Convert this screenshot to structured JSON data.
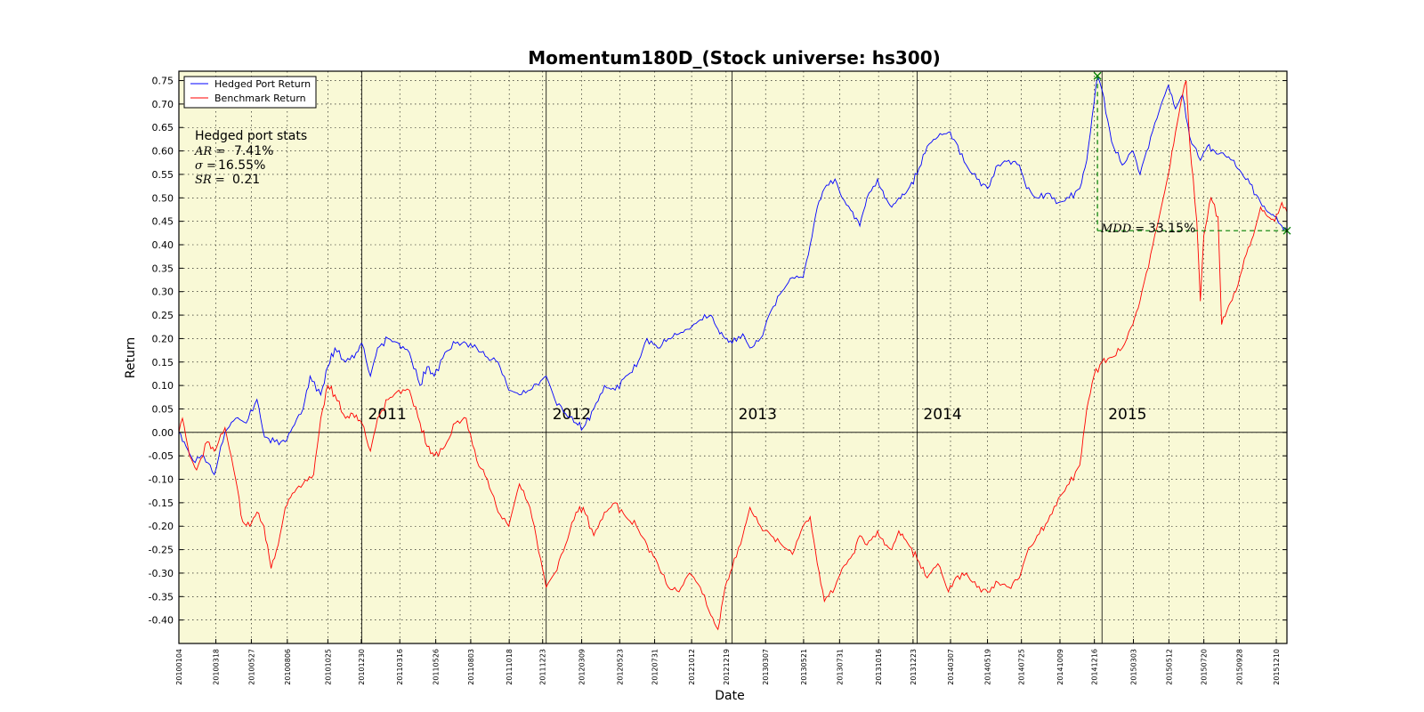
{
  "chart_data": {
    "type": "line",
    "title": "Momentum180D_(Stock universe: hs300)",
    "xlabel": "Date",
    "ylabel": "Return",
    "xrange": [
      "20100104",
      "20151231"
    ],
    "ylim": [
      -0.45,
      0.77
    ],
    "yticks": [
      -0.4,
      -0.35,
      -0.3,
      -0.25,
      -0.2,
      -0.15,
      -0.1,
      -0.05,
      0.0,
      0.05,
      0.1,
      0.15,
      0.2,
      0.25,
      0.3,
      0.35,
      0.4,
      0.45,
      0.5,
      0.55,
      0.6,
      0.65,
      0.7,
      0.75
    ],
    "xtick_labels": [
      "20100104",
      "20100318",
      "20100527",
      "20100806",
      "20101025",
      "20101230",
      "20110316",
      "20110526",
      "20110803",
      "20111018",
      "20111223",
      "20120309",
      "20120523",
      "20120731",
      "20121012",
      "20121219",
      "20130307",
      "20130521",
      "20130731",
      "20131016",
      "20131223",
      "20140307",
      "20140519",
      "20140725",
      "20141009",
      "20141216",
      "20150303",
      "20150512",
      "20150720",
      "20150928",
      "20151210"
    ],
    "grid": true,
    "legend_position": "top-left",
    "background_color": "#f9f9d6",
    "year_markers": [
      {
        "date": "20101231",
        "label": "2011"
      },
      {
        "date": "20111230",
        "label": "2012"
      },
      {
        "date": "20121231",
        "label": "2013"
      },
      {
        "date": "20131231",
        "label": "2014"
      },
      {
        "date": "20141231",
        "label": "2015"
      }
    ],
    "series": [
      {
        "name": "Hedged Port Return",
        "color": "#0000ff",
        "points": [
          [
            "20100104",
            0.0
          ],
          [
            "20100118",
            -0.03
          ],
          [
            "20100201",
            -0.06
          ],
          [
            "20100222",
            -0.05
          ],
          [
            "20100315",
            -0.09
          ],
          [
            "20100405",
            0.0
          ],
          [
            "20100426",
            0.03
          ],
          [
            "20100517",
            0.02
          ],
          [
            "20100607",
            0.07
          ],
          [
            "20100622",
            -0.01
          ],
          [
            "20100712",
            -0.02
          ],
          [
            "20100802",
            -0.02
          ],
          [
            "20100816",
            0.01
          ],
          [
            "20100906",
            0.05
          ],
          [
            "20100920",
            0.12
          ],
          [
            "20101011",
            0.08
          ],
          [
            "20101025",
            0.14
          ],
          [
            "20101108",
            0.18
          ],
          [
            "20101129",
            0.15
          ],
          [
            "20101220",
            0.17
          ],
          [
            "20101231",
            0.19
          ],
          [
            "20110117",
            0.12
          ],
          [
            "20110131",
            0.18
          ],
          [
            "20110221",
            0.2
          ],
          [
            "20110314",
            0.19
          ],
          [
            "20110404",
            0.17
          ],
          [
            "20110425",
            0.1
          ],
          [
            "20110509",
            0.14
          ],
          [
            "20110523",
            0.12
          ],
          [
            "20110613",
            0.17
          ],
          [
            "20110704",
            0.19
          ],
          [
            "20110725",
            0.19
          ],
          [
            "20110815",
            0.18
          ],
          [
            "20110905",
            0.16
          ],
          [
            "20110926",
            0.15
          ],
          [
            "20111017",
            0.09
          ],
          [
            "20111107",
            0.08
          ],
          [
            "20111128",
            0.09
          ],
          [
            "20111219",
            0.11
          ],
          [
            "20111230",
            0.12
          ],
          [
            "20120116",
            0.07
          ],
          [
            "20120206",
            0.04
          ],
          [
            "20120227",
            0.02
          ],
          [
            "20120312",
            0.01
          ],
          [
            "20120402",
            0.05
          ],
          [
            "20120423",
            0.1
          ],
          [
            "20120514",
            0.09
          ],
          [
            "20120604",
            0.12
          ],
          [
            "20120625",
            0.14
          ],
          [
            "20120716",
            0.2
          ],
          [
            "20120806",
            0.18
          ],
          [
            "20120827",
            0.2
          ],
          [
            "20120917",
            0.21
          ],
          [
            "20121008",
            0.22
          ],
          [
            "20121029",
            0.24
          ],
          [
            "20121119",
            0.25
          ],
          [
            "20121203",
            0.22
          ],
          [
            "20121217",
            0.2
          ],
          [
            "20121231",
            0.19
          ],
          [
            "20130121",
            0.21
          ],
          [
            "20130204",
            0.18
          ],
          [
            "20130225",
            0.2
          ],
          [
            "20130318",
            0.26
          ],
          [
            "20130408",
            0.3
          ],
          [
            "20130429",
            0.33
          ],
          [
            "20130520",
            0.33
          ],
          [
            "20130603",
            0.4
          ],
          [
            "20130617",
            0.48
          ],
          [
            "20130701",
            0.52
          ],
          [
            "20130722",
            0.54
          ],
          [
            "20130805",
            0.5
          ],
          [
            "20130826",
            0.47
          ],
          [
            "20130909",
            0.44
          ],
          [
            "20130923",
            0.5
          ],
          [
            "20131014",
            0.54
          ],
          [
            "20131028",
            0.5
          ],
          [
            "20131111",
            0.48
          ],
          [
            "20131125",
            0.5
          ],
          [
            "20131209",
            0.51
          ],
          [
            "20131231",
            0.55
          ],
          [
            "20140120",
            0.61
          ],
          [
            "20140210",
            0.63
          ],
          [
            "20140303",
            0.64
          ],
          [
            "20140317",
            0.62
          ],
          [
            "20140407",
            0.57
          ],
          [
            "20140428",
            0.54
          ],
          [
            "20140519",
            0.52
          ],
          [
            "20140609",
            0.57
          ],
          [
            "20140630",
            0.58
          ],
          [
            "20140721",
            0.57
          ],
          [
            "20140804",
            0.52
          ],
          [
            "20140825",
            0.5
          ],
          [
            "20140915",
            0.51
          ],
          [
            "20141006",
            0.49
          ],
          [
            "20141027",
            0.5
          ],
          [
            "20141117",
            0.52
          ],
          [
            "20141201",
            0.58
          ],
          [
            "20141215",
            0.7
          ],
          [
            "20141222",
            0.76
          ],
          [
            "20141231",
            0.73
          ],
          [
            "20150119",
            0.62
          ],
          [
            "20150209",
            0.57
          ],
          [
            "20150302",
            0.6
          ],
          [
            "20150316",
            0.55
          ],
          [
            "20150406",
            0.63
          ],
          [
            "20150427",
            0.7
          ],
          [
            "20150511",
            0.74
          ],
          [
            "20150525",
            0.69
          ],
          [
            "20150608",
            0.72
          ],
          [
            "20150622",
            0.63
          ],
          [
            "20150713",
            0.58
          ],
          [
            "20150727",
            0.61
          ],
          [
            "20150810",
            0.6
          ],
          [
            "20150831",
            0.59
          ],
          [
            "20150914",
            0.58
          ],
          [
            "20150928",
            0.56
          ],
          [
            "20151019",
            0.53
          ],
          [
            "20151109",
            0.49
          ],
          [
            "20151123",
            0.47
          ],
          [
            "20151207",
            0.46
          ],
          [
            "20151221",
            0.44
          ],
          [
            "20151231",
            0.43
          ]
        ]
      },
      {
        "name": "Benchmark Return",
        "color": "#ff0000",
        "points": [
          [
            "20100104",
            0.0
          ],
          [
            "20100111",
            0.03
          ],
          [
            "20100125",
            -0.05
          ],
          [
            "20100208",
            -0.08
          ],
          [
            "20100301",
            -0.02
          ],
          [
            "20100315",
            -0.04
          ],
          [
            "20100405",
            0.01
          ],
          [
            "20100426",
            -0.1
          ],
          [
            "20100510",
            -0.19
          ],
          [
            "20100524",
            -0.2
          ],
          [
            "20100607",
            -0.17
          ],
          [
            "20100621",
            -0.2
          ],
          [
            "20100705",
            -0.29
          ],
          [
            "20100719",
            -0.24
          ],
          [
            "20100802",
            -0.16
          ],
          [
            "20100816",
            -0.13
          ],
          [
            "20100906",
            -0.11
          ],
          [
            "20100927",
            -0.09
          ],
          [
            "20101011",
            0.03
          ],
          [
            "20101025",
            0.1
          ],
          [
            "20101108",
            0.08
          ],
          [
            "20101129",
            0.03
          ],
          [
            "20101213",
            0.04
          ],
          [
            "20101231",
            0.02
          ],
          [
            "20110117",
            -0.04
          ],
          [
            "20110131",
            0.03
          ],
          [
            "20110221",
            0.07
          ],
          [
            "20110314",
            0.09
          ],
          [
            "20110404",
            0.09
          ],
          [
            "20110425",
            0.02
          ],
          [
            "20110509",
            -0.03
          ],
          [
            "20110523",
            -0.05
          ],
          [
            "20110613",
            -0.03
          ],
          [
            "20110704",
            0.02
          ],
          [
            "20110725",
            0.03
          ],
          [
            "20110815",
            -0.06
          ],
          [
            "20110905",
            -0.1
          ],
          [
            "20110926",
            -0.17
          ],
          [
            "20111017",
            -0.2
          ],
          [
            "20111107",
            -0.11
          ],
          [
            "20111128",
            -0.16
          ],
          [
            "20111219",
            -0.27
          ],
          [
            "20111230",
            -0.33
          ],
          [
            "20120116",
            -0.3
          ],
          [
            "20120206",
            -0.24
          ],
          [
            "20120227",
            -0.17
          ],
          [
            "20120312",
            -0.16
          ],
          [
            "20120402",
            -0.22
          ],
          [
            "20120423",
            -0.17
          ],
          [
            "20120514",
            -0.15
          ],
          [
            "20120604",
            -0.18
          ],
          [
            "20120625",
            -0.2
          ],
          [
            "20120716",
            -0.24
          ],
          [
            "20120806",
            -0.28
          ],
          [
            "20120827",
            -0.33
          ],
          [
            "20120917",
            -0.34
          ],
          [
            "20121008",
            -0.3
          ],
          [
            "20121029",
            -0.33
          ],
          [
            "20121119",
            -0.39
          ],
          [
            "20121203",
            -0.42
          ],
          [
            "20121217",
            -0.33
          ],
          [
            "20121231",
            -0.29
          ],
          [
            "20130121",
            -0.22
          ],
          [
            "20130204",
            -0.16
          ],
          [
            "20130225",
            -0.2
          ],
          [
            "20130318",
            -0.22
          ],
          [
            "20130408",
            -0.24
          ],
          [
            "20130429",
            -0.26
          ],
          [
            "20130520",
            -0.2
          ],
          [
            "20130603",
            -0.18
          ],
          [
            "20130617",
            -0.28
          ],
          [
            "20130701",
            -0.36
          ],
          [
            "20130722",
            -0.33
          ],
          [
            "20130805",
            -0.29
          ],
          [
            "20130826",
            -0.26
          ],
          [
            "20130909",
            -0.22
          ],
          [
            "20130923",
            -0.24
          ],
          [
            "20131014",
            -0.21
          ],
          [
            "20131028",
            -0.24
          ],
          [
            "20131111",
            -0.25
          ],
          [
            "20131125",
            -0.21
          ],
          [
            "20131209",
            -0.23
          ],
          [
            "20131231",
            -0.27
          ],
          [
            "20140120",
            -0.31
          ],
          [
            "20140210",
            -0.28
          ],
          [
            "20140303",
            -0.34
          ],
          [
            "20140317",
            -0.31
          ],
          [
            "20140407",
            -0.3
          ],
          [
            "20140428",
            -0.33
          ],
          [
            "20140519",
            -0.34
          ],
          [
            "20140609",
            -0.32
          ],
          [
            "20140630",
            -0.33
          ],
          [
            "20140721",
            -0.31
          ],
          [
            "20140804",
            -0.26
          ],
          [
            "20140825",
            -0.22
          ],
          [
            "20140915",
            -0.19
          ],
          [
            "20141006",
            -0.14
          ],
          [
            "20141027",
            -0.11
          ],
          [
            "20141117",
            -0.07
          ],
          [
            "20141201",
            0.05
          ],
          [
            "20141215",
            0.12
          ],
          [
            "20141231",
            0.15
          ],
          [
            "20150119",
            0.16
          ],
          [
            "20150209",
            0.18
          ],
          [
            "20150302",
            0.23
          ],
          [
            "20150316",
            0.28
          ],
          [
            "20150406",
            0.38
          ],
          [
            "20150427",
            0.48
          ],
          [
            "20150511",
            0.55
          ],
          [
            "20150525",
            0.64
          ],
          [
            "20150608",
            0.72
          ],
          [
            "20150615",
            0.75
          ],
          [
            "20150622",
            0.62
          ],
          [
            "20150706",
            0.45
          ],
          [
            "20150713",
            0.28
          ],
          [
            "20150720",
            0.42
          ],
          [
            "20150803",
            0.5
          ],
          [
            "20150817",
            0.46
          ],
          [
            "20150824",
            0.23
          ],
          [
            "20150907",
            0.27
          ],
          [
            "20150921",
            0.3
          ],
          [
            "20151012",
            0.38
          ],
          [
            "20151026",
            0.42
          ],
          [
            "20151109",
            0.48
          ],
          [
            "20151123",
            0.46
          ],
          [
            "20151207",
            0.45
          ],
          [
            "20151221",
            0.49
          ],
          [
            "20151231",
            0.47
          ]
        ]
      }
    ],
    "annotations": {
      "stats_heading": "Hedged port stats",
      "ar_label": "AR =",
      "ar_value": "7.41%",
      "sigma_label": "σ =",
      "sigma_value": "16.55%",
      "sr_label": "SR =",
      "sr_value": "0.21",
      "mdd_label": "MDD =",
      "mdd_value": "33.15%",
      "mdd_color": "#007f00",
      "mdd_peak": {
        "date": "20141222",
        "value": 0.76
      },
      "mdd_end": {
        "date": "20151231",
        "value": 0.43
      }
    }
  }
}
